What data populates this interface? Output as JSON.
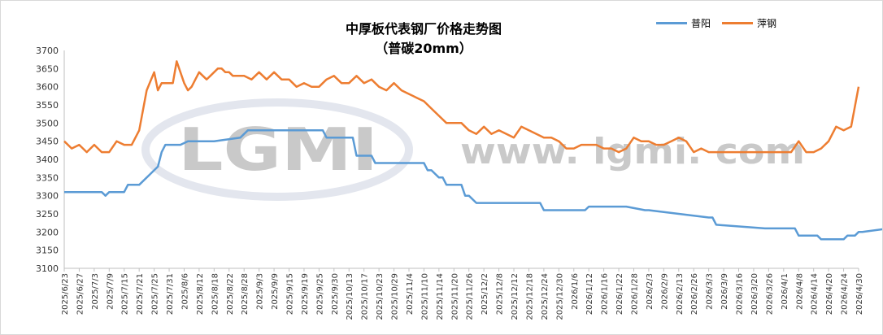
{
  "title": "中厚板代表钢厂价格走势图",
  "subtitle": "（普碳20mm）",
  "watermark": {
    "logo": "LGMI",
    "site": "www. lgmi. com"
  },
  "legend": [
    {
      "name": "普阳",
      "color": "#5b9bd5"
    },
    {
      "name": "萍钢",
      "color": "#ed7d31"
    }
  ],
  "chart_data": {
    "type": "line",
    "title": "中厚板代表钢厂价格走势图",
    "subtitle": "（普碳20mm）",
    "ylim": [
      3100,
      3700
    ],
    "yticks": [
      3100,
      3150,
      3200,
      3250,
      3300,
      3350,
      3400,
      3450,
      3500,
      3550,
      3600,
      3650,
      3700
    ],
    "grid": false,
    "legend_position": "top-right",
    "x_tick_labels": [
      "2025/6/23",
      "2025/6/27",
      "2025/7/3",
      "2025/7/9",
      "2025/7/15",
      "2025/7/21",
      "2025/7/25",
      "2025/7/31",
      "2025/8/6",
      "2025/8/12",
      "2025/8/18",
      "2025/8/22",
      "2025/8/28",
      "2025/9/3",
      "2025/9/9",
      "2025/9/15",
      "2025/9/19",
      "2025/9/25",
      "2025/9/30",
      "2025/10/13",
      "2025/10/17",
      "2025/10/23",
      "2025/10/29",
      "2025/11/4",
      "2025/11/10",
      "2025/11/14",
      "2025/11/20",
      "2025/11/26",
      "2025/12/2",
      "2025/12/8",
      "2025/12/12",
      "2025/12/18",
      "2025/12/24",
      "2025/12/30",
      "2026/1/6",
      "2026/1/12",
      "2026/1/16",
      "2026/1/22",
      "2026/1/28",
      "2026/2/3",
      "2026/2/9",
      "2026/2/13",
      "2026/2/26",
      "2026/3/3",
      "2026/3/9",
      "2026/3/16",
      "2026/3/20",
      "2026/3/26",
      "2026/4/1",
      "2026/4/8",
      "2026/4/14",
      "2026/4/20",
      "2026/4/24",
      "2026/4/30"
    ],
    "x_index_range": [
      0,
      212
    ],
    "series": [
      {
        "name": "普阳",
        "color": "#5b9bd5",
        "x": [
          0,
          10,
          11,
          12,
          13,
          16,
          17,
          20,
          23,
          24,
          25,
          26,
          27,
          31,
          33,
          36,
          40,
          47,
          49,
          51,
          69,
          70,
          72,
          77,
          78,
          82,
          83,
          87,
          89,
          96,
          97,
          98,
          99,
          100,
          101,
          102,
          103,
          106,
          107,
          108,
          110,
          111,
          127,
          128,
          139,
          140,
          150,
          155,
          156,
          172,
          173,
          174,
          187,
          188,
          192,
          193,
          194,
          195,
          196,
          198,
          200,
          201,
          202,
          208,
          209,
          211,
          212,
          213,
          220,
          221,
          222,
          224,
          225,
          226,
          227,
          228,
          229,
          233,
          234,
          239
        ],
        "y": [
          3310,
          3310,
          3300,
          3310,
          3310,
          3310,
          3330,
          3330,
          3360,
          3370,
          3380,
          3420,
          3440,
          3440,
          3450,
          3450,
          3450,
          3460,
          3480,
          3480,
          3480,
          3460,
          3460,
          3460,
          3410,
          3410,
          3390,
          3390,
          3390,
          3390,
          3370,
          3370,
          3360,
          3350,
          3350,
          3330,
          3330,
          3330,
          3300,
          3300,
          3280,
          3280,
          3280,
          3260,
          3260,
          3270,
          3270,
          3260,
          3260,
          3240,
          3240,
          3220,
          3210,
          3210,
          3210,
          3210,
          3210,
          3210,
          3190,
          3190,
          3190,
          3190,
          3180,
          3180,
          3190,
          3190,
          3200,
          3200,
          3210,
          3230,
          3220,
          3240,
          3240,
          3250,
          3250,
          3250,
          3250,
          3250,
          3240,
          3240
        ]
      },
      {
        "name": "萍钢",
        "color": "#ed7d31",
        "x": [
          0,
          2,
          4,
          6,
          8,
          10,
          12,
          14,
          16,
          18,
          20,
          22,
          24,
          25,
          26,
          27,
          28,
          29,
          30,
          31,
          32,
          33,
          34,
          35,
          36,
          37,
          38,
          39,
          40,
          41,
          42,
          43,
          44,
          45,
          46,
          48,
          50,
          52,
          54,
          56,
          58,
          60,
          62,
          64,
          66,
          68,
          70,
          72,
          74,
          76,
          78,
          80,
          82,
          84,
          86,
          88,
          90,
          92,
          94,
          96,
          98,
          100,
          102,
          104,
          106,
          108,
          110,
          112,
          114,
          116,
          118,
          120,
          122,
          124,
          126,
          128,
          130,
          132,
          134,
          136,
          138,
          140,
          142,
          144,
          146,
          148,
          150,
          152,
          154,
          156,
          158,
          160,
          162,
          164,
          166,
          168,
          170,
          172,
          174,
          176,
          178,
          180,
          182,
          184,
          186,
          188,
          190,
          192,
          194,
          196,
          198,
          200,
          202,
          204,
          206,
          208,
          210,
          212
        ],
        "y": [
          3450,
          3430,
          3440,
          3420,
          3440,
          3420,
          3420,
          3450,
          3440,
          3440,
          3480,
          3590,
          3640,
          3590,
          3610,
          3610,
          3610,
          3610,
          3670,
          3640,
          3610,
          3590,
          3600,
          3620,
          3640,
          3630,
          3620,
          3630,
          3640,
          3650,
          3650,
          3640,
          3640,
          3630,
          3630,
          3630,
          3620,
          3640,
          3620,
          3640,
          3620,
          3620,
          3600,
          3610,
          3600,
          3600,
          3620,
          3630,
          3610,
          3610,
          3630,
          3610,
          3620,
          3600,
          3590,
          3610,
          3590,
          3580,
          3570,
          3560,
          3540,
          3520,
          3500,
          3500,
          3500,
          3480,
          3470,
          3490,
          3470,
          3480,
          3470,
          3460,
          3490,
          3480,
          3470,
          3460,
          3460,
          3450,
          3430,
          3430,
          3440,
          3440,
          3440,
          3430,
          3430,
          3420,
          3430,
          3460,
          3450,
          3450,
          3440,
          3440,
          3450,
          3460,
          3450,
          3420,
          3430,
          3420,
          3420,
          3420,
          3420,
          3420,
          3420,
          3420,
          3420,
          3420,
          3420,
          3420,
          3420,
          3450,
          3420,
          3420,
          3430,
          3450,
          3490,
          3480,
          3490,
          3600
        ]
      }
    ]
  }
}
